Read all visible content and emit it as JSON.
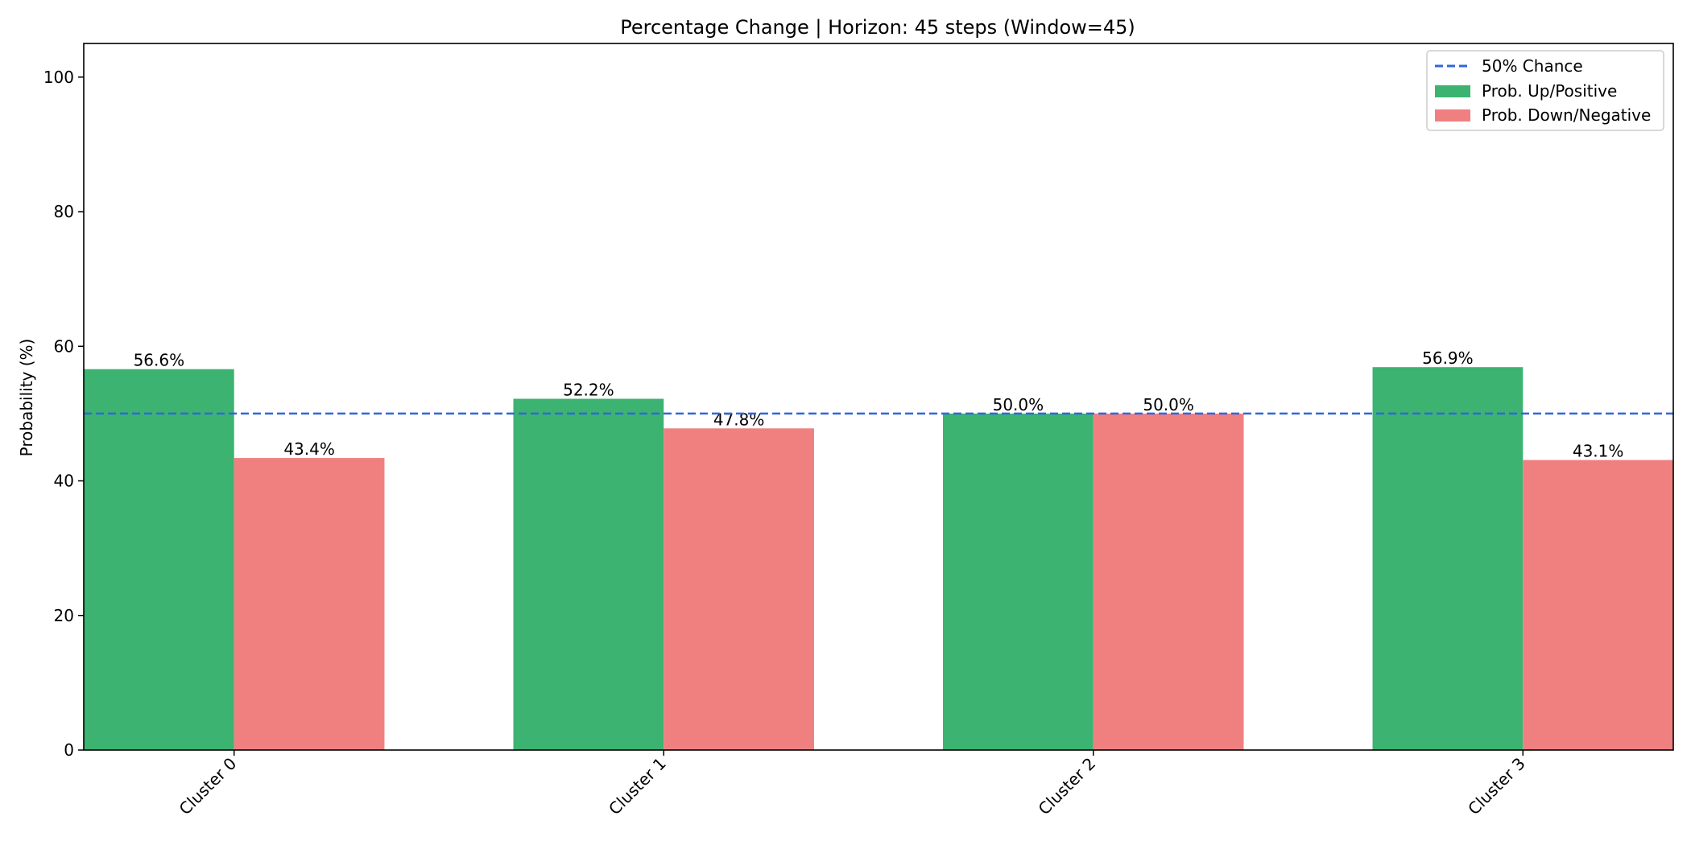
{
  "chart_data": {
    "type": "bar",
    "title": "Percentage Change | Horizon: 45 steps (Window=45)",
    "xlabel": "",
    "ylabel": "Probability (%)",
    "categories": [
      "Cluster 0",
      "Cluster 1",
      "Cluster 2",
      "Cluster 3"
    ],
    "series": [
      {
        "name": "Prob. Up/Positive",
        "color": "#3cb371",
        "values": [
          56.6,
          52.2,
          50.0,
          56.9
        ],
        "labels": [
          "56.6%",
          "52.2%",
          "50.0%",
          "56.9%"
        ]
      },
      {
        "name": "Prob. Down/Negative",
        "color": "#f08080",
        "values": [
          43.4,
          47.8,
          50.0,
          43.1
        ],
        "labels": [
          "43.4%",
          "47.8%",
          "50.0%",
          "43.1%"
        ]
      }
    ],
    "reference_line": {
      "name": "50% Chance",
      "value": 50,
      "color": "#3366dd",
      "style": "dashed"
    },
    "ylim": [
      0,
      105
    ],
    "yticks": [
      0,
      20,
      40,
      60,
      80,
      100
    ],
    "grid": false,
    "legend_position": "top-right"
  }
}
